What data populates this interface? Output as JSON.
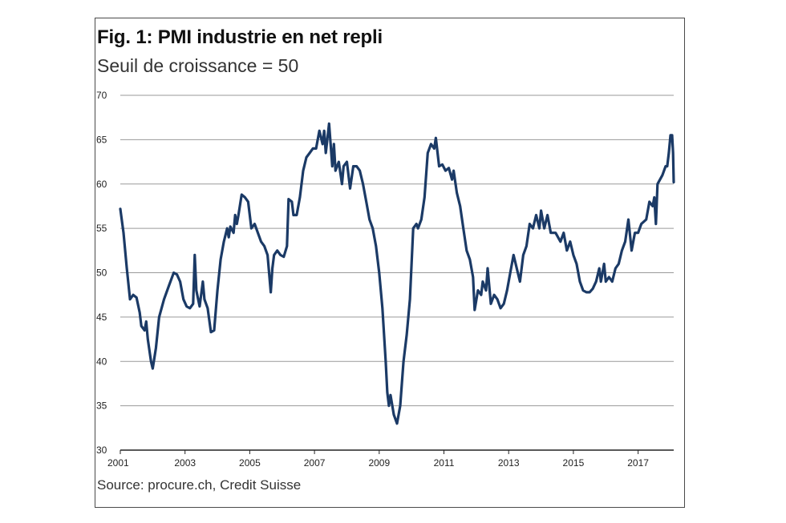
{
  "header": {
    "title": "Fig. 1: PMI industrie en net repli",
    "subtitle": "Seuil de croissance = 50"
  },
  "footer": {
    "source": "Source: procure.ch, Credit Suisse"
  },
  "colors": {
    "line": "#1b3a66",
    "grid": "#9a9a9a",
    "axis": "#222222"
  },
  "chart_data": {
    "type": "line",
    "title": "Fig. 1: PMI industrie en net repli",
    "subtitle": "Seuil de croissance = 50",
    "xlabel": "",
    "ylabel": "",
    "ylim": [
      30,
      70
    ],
    "xlim": [
      2001,
      2018.1
    ],
    "grid": true,
    "legend": "none",
    "y_ticks": [
      "30",
      "35",
      "40",
      "45",
      "50",
      "55",
      "60",
      "65",
      "70"
    ],
    "x_ticks": [
      "2001",
      "2003",
      "2005",
      "2007",
      "2009",
      "2011",
      "2013",
      "2015",
      "2017"
    ],
    "series": [
      {
        "values": [
          [
            2001.0,
            57.2
          ],
          [
            2001.1,
            54.5
          ],
          [
            2001.2,
            50.5
          ],
          [
            2001.3,
            47.0
          ],
          [
            2001.4,
            47.5
          ],
          [
            2001.5,
            47.2
          ],
          [
            2001.6,
            45.5
          ],
          [
            2001.65,
            44.0
          ],
          [
            2001.75,
            43.5
          ],
          [
            2001.8,
            44.5
          ],
          [
            2001.85,
            42.5
          ],
          [
            2001.95,
            40.0
          ],
          [
            2002.0,
            39.2
          ],
          [
            2002.1,
            41.5
          ],
          [
            2002.2,
            45.0
          ],
          [
            2002.35,
            47.0
          ],
          [
            2002.5,
            48.5
          ],
          [
            2002.65,
            50.0
          ],
          [
            2002.75,
            49.8
          ],
          [
            2002.85,
            49.0
          ],
          [
            2002.95,
            47.0
          ],
          [
            2003.05,
            46.2
          ],
          [
            2003.15,
            46.0
          ],
          [
            2003.25,
            46.5
          ],
          [
            2003.3,
            52.0
          ],
          [
            2003.35,
            48.0
          ],
          [
            2003.45,
            46.2
          ],
          [
            2003.55,
            49.0
          ],
          [
            2003.6,
            47.0
          ],
          [
            2003.7,
            46.0
          ],
          [
            2003.8,
            43.3
          ],
          [
            2003.9,
            43.5
          ],
          [
            2004.0,
            48.0
          ],
          [
            2004.1,
            51.5
          ],
          [
            2004.2,
            53.5
          ],
          [
            2004.3,
            55.0
          ],
          [
            2004.35,
            54.0
          ],
          [
            2004.4,
            55.2
          ],
          [
            2004.5,
            54.5
          ],
          [
            2004.55,
            56.5
          ],
          [
            2004.6,
            55.5
          ],
          [
            2004.65,
            56.5
          ],
          [
            2004.75,
            58.8
          ],
          [
            2004.85,
            58.5
          ],
          [
            2004.95,
            58.0
          ],
          [
            2005.05,
            55.0
          ],
          [
            2005.15,
            55.5
          ],
          [
            2005.25,
            54.5
          ],
          [
            2005.35,
            53.5
          ],
          [
            2005.45,
            53.0
          ],
          [
            2005.55,
            52.0
          ],
          [
            2005.65,
            47.8
          ],
          [
            2005.7,
            50.5
          ],
          [
            2005.75,
            52.0
          ],
          [
            2005.85,
            52.5
          ],
          [
            2005.95,
            52.0
          ],
          [
            2006.05,
            51.8
          ],
          [
            2006.15,
            53.0
          ],
          [
            2006.2,
            58.3
          ],
          [
            2006.3,
            58.0
          ],
          [
            2006.35,
            56.5
          ],
          [
            2006.45,
            56.5
          ],
          [
            2006.55,
            58.5
          ],
          [
            2006.65,
            61.5
          ],
          [
            2006.75,
            63.0
          ],
          [
            2006.85,
            63.5
          ],
          [
            2006.95,
            64.0
          ],
          [
            2007.05,
            64.0
          ],
          [
            2007.15,
            66.0
          ],
          [
            2007.25,
            64.5
          ],
          [
            2007.3,
            66.0
          ],
          [
            2007.35,
            63.5
          ],
          [
            2007.45,
            66.8
          ],
          [
            2007.55,
            62.0
          ],
          [
            2007.6,
            64.5
          ],
          [
            2007.65,
            61.5
          ],
          [
            2007.75,
            62.5
          ],
          [
            2007.85,
            60.0
          ],
          [
            2007.9,
            62.0
          ],
          [
            2008.0,
            62.5
          ],
          [
            2008.05,
            61.0
          ],
          [
            2008.1,
            59.5
          ],
          [
            2008.2,
            62.0
          ],
          [
            2008.3,
            62.0
          ],
          [
            2008.4,
            61.5
          ],
          [
            2008.5,
            60.0
          ],
          [
            2008.6,
            58.0
          ],
          [
            2008.7,
            56.0
          ],
          [
            2008.8,
            55.0
          ],
          [
            2008.9,
            53.0
          ],
          [
            2009.0,
            50.0
          ],
          [
            2009.1,
            46.0
          ],
          [
            2009.2,
            40.0
          ],
          [
            2009.25,
            36.5
          ],
          [
            2009.3,
            35.0
          ],
          [
            2009.35,
            36.2
          ],
          [
            2009.45,
            34.0
          ],
          [
            2009.55,
            33.0
          ],
          [
            2009.65,
            35.0
          ],
          [
            2009.75,
            40.0
          ],
          [
            2009.85,
            43.0
          ],
          [
            2009.95,
            47.0
          ],
          [
            2010.05,
            55.0
          ],
          [
            2010.15,
            55.5
          ],
          [
            2010.2,
            55.0
          ],
          [
            2010.3,
            56.0
          ],
          [
            2010.4,
            58.5
          ],
          [
            2010.5,
            63.5
          ],
          [
            2010.6,
            64.5
          ],
          [
            2010.7,
            64.0
          ],
          [
            2010.75,
            65.2
          ],
          [
            2010.85,
            62.0
          ],
          [
            2010.95,
            62.2
          ],
          [
            2011.05,
            61.5
          ],
          [
            2011.15,
            61.8
          ],
          [
            2011.25,
            60.5
          ],
          [
            2011.3,
            61.5
          ],
          [
            2011.4,
            59.0
          ],
          [
            2011.5,
            57.5
          ],
          [
            2011.6,
            55.0
          ],
          [
            2011.7,
            52.5
          ],
          [
            2011.8,
            51.5
          ],
          [
            2011.9,
            49.5
          ],
          [
            2011.95,
            45.8
          ],
          [
            2012.05,
            48.0
          ],
          [
            2012.15,
            47.5
          ],
          [
            2012.2,
            49.0
          ],
          [
            2012.3,
            48.0
          ],
          [
            2012.35,
            50.5
          ],
          [
            2012.45,
            46.5
          ],
          [
            2012.55,
            47.5
          ],
          [
            2012.65,
            47.0
          ],
          [
            2012.75,
            46.0
          ],
          [
            2012.85,
            46.5
          ],
          [
            2012.95,
            48.0
          ],
          [
            2013.05,
            50.0
          ],
          [
            2013.15,
            52.0
          ],
          [
            2013.25,
            50.5
          ],
          [
            2013.35,
            49.0
          ],
          [
            2013.45,
            52.0
          ],
          [
            2013.55,
            53.0
          ],
          [
            2013.65,
            55.5
          ],
          [
            2013.75,
            55.0
          ],
          [
            2013.85,
            56.5
          ],
          [
            2013.95,
            55.0
          ],
          [
            2014.0,
            57.0
          ],
          [
            2014.1,
            55.0
          ],
          [
            2014.2,
            56.5
          ],
          [
            2014.3,
            54.5
          ],
          [
            2014.45,
            54.5
          ],
          [
            2014.6,
            53.5
          ],
          [
            2014.7,
            54.5
          ],
          [
            2014.8,
            52.5
          ],
          [
            2014.9,
            53.5
          ],
          [
            2015.0,
            52.0
          ],
          [
            2015.1,
            51.0
          ],
          [
            2015.2,
            49.0
          ],
          [
            2015.3,
            48.0
          ],
          [
            2015.4,
            47.8
          ],
          [
            2015.5,
            47.8
          ],
          [
            2015.6,
            48.2
          ],
          [
            2015.7,
            49.0
          ],
          [
            2015.8,
            50.5
          ],
          [
            2015.85,
            49.0
          ],
          [
            2015.95,
            51.0
          ],
          [
            2016.0,
            49.0
          ],
          [
            2016.1,
            49.5
          ],
          [
            2016.2,
            49.0
          ],
          [
            2016.3,
            50.5
          ],
          [
            2016.4,
            51.0
          ],
          [
            2016.5,
            52.5
          ],
          [
            2016.6,
            53.5
          ],
          [
            2016.7,
            56.0
          ],
          [
            2016.8,
            52.5
          ],
          [
            2016.9,
            54.5
          ],
          [
            2017.0,
            54.5
          ],
          [
            2017.1,
            55.5
          ],
          [
            2017.25,
            56.0
          ],
          [
            2017.35,
            58.0
          ],
          [
            2017.45,
            57.5
          ],
          [
            2017.5,
            58.5
          ],
          [
            2017.55,
            55.5
          ],
          [
            2017.6,
            60.0
          ],
          [
            2017.75,
            61.0
          ],
          [
            2017.85,
            62.0
          ],
          [
            2017.9,
            62.0
          ],
          [
            2017.95,
            63.5
          ],
          [
            2018.0,
            65.5
          ],
          [
            2018.05,
            65.5
          ],
          [
            2018.08,
            63.5
          ],
          [
            2018.1,
            60.2
          ]
        ]
      }
    ]
  }
}
